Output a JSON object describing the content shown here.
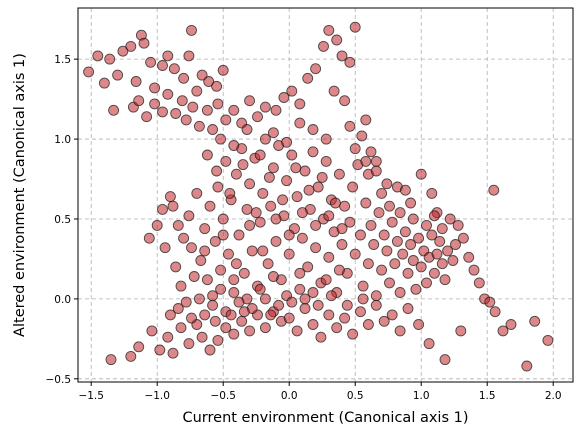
{
  "chart_data": {
    "type": "scatter",
    "xlabel": "Current environment (Canonical axis 1)",
    "ylabel": "Altered environment (Canonical axis 1)",
    "xlim": [
      -1.6,
      2.15
    ],
    "ylim": [
      -0.52,
      1.82
    ],
    "xticks": [
      -1.5,
      -1.0,
      -0.5,
      0.0,
      0.5,
      1.0,
      1.5,
      2.0
    ],
    "xtick_labels": [
      "−1.5",
      "−1.0",
      "−0.5",
      "0.0",
      "0.5",
      "1.0",
      "1.5",
      "2.0"
    ],
    "yticks": [
      -0.5,
      0.0,
      0.5,
      1.0,
      1.5
    ],
    "ytick_labels": [
      "−0.5",
      "0.0",
      "0.5",
      "1.0",
      "1.5"
    ],
    "grid": true,
    "marker_color": "#c0262a",
    "marker_edge_color": "#1a1a1a",
    "marker_alpha": 0.55,
    "points": [
      [
        -1.52,
        1.42
      ],
      [
        -1.45,
        1.52
      ],
      [
        -1.4,
        1.35
      ],
      [
        -1.36,
        1.5
      ],
      [
        -1.33,
        1.18
      ],
      [
        -1.3,
        1.4
      ],
      [
        -1.26,
        1.55
      ],
      [
        -1.2,
        1.58
      ],
      [
        -1.16,
        1.36
      ],
      [
        -1.12,
        1.65
      ],
      [
        -1.1,
        1.6
      ],
      [
        -1.05,
        1.48
      ],
      [
        -1.02,
        1.32
      ],
      [
        -0.96,
        1.46
      ],
      [
        -0.92,
        1.52
      ],
      [
        -0.87,
        1.44
      ],
      [
        -0.8,
        1.38
      ],
      [
        -0.76,
        1.52
      ],
      [
        -0.74,
        1.68
      ],
      [
        -0.7,
        1.3
      ],
      [
        -0.66,
        1.4
      ],
      [
        -0.61,
        1.36
      ],
      [
        -0.55,
        1.33
      ],
      [
        -0.5,
        1.43
      ],
      [
        -1.18,
        1.2
      ],
      [
        -1.14,
        1.24
      ],
      [
        -1.08,
        1.14
      ],
      [
        -1.02,
        1.22
      ],
      [
        -0.96,
        1.17
      ],
      [
        -0.92,
        1.28
      ],
      [
        -0.86,
        1.16
      ],
      [
        -0.81,
        1.24
      ],
      [
        -0.78,
        1.12
      ],
      [
        -0.73,
        1.2
      ],
      [
        -0.68,
        1.08
      ],
      [
        -0.62,
        1.18
      ],
      [
        -0.58,
        1.06
      ],
      [
        -0.54,
        1.22
      ],
      [
        -0.48,
        1.12
      ],
      [
        -0.42,
        1.18
      ],
      [
        -0.36,
        1.1
      ],
      [
        -0.3,
        1.24
      ],
      [
        -0.24,
        1.14
      ],
      [
        -0.18,
        1.2
      ],
      [
        -0.1,
        1.18
      ],
      [
        -0.04,
        1.26
      ],
      [
        0.02,
        1.3
      ],
      [
        0.08,
        1.22
      ],
      [
        0.14,
        1.38
      ],
      [
        0.2,
        1.44
      ],
      [
        0.26,
        1.58
      ],
      [
        0.3,
        1.68
      ],
      [
        0.36,
        1.62
      ],
      [
        0.4,
        1.52
      ],
      [
        0.46,
        1.48
      ],
      [
        0.5,
        1.7
      ],
      [
        0.34,
        1.3
      ],
      [
        0.42,
        1.24
      ],
      [
        0.46,
        1.08
      ],
      [
        0.55,
        1.02
      ],
      [
        0.62,
        0.92
      ],
      [
        0.58,
        1.12
      ],
      [
        0.66,
        0.86
      ],
      [
        0.74,
        0.72
      ],
      [
        0.82,
        0.7
      ],
      [
        0.88,
        0.68
      ],
      [
        0.92,
        0.6
      ],
      [
        1.0,
        0.78
      ],
      [
        1.08,
        0.66
      ],
      [
        1.12,
        0.54
      ],
      [
        1.16,
        0.44
      ],
      [
        1.22,
        0.5
      ],
      [
        1.28,
        0.46
      ],
      [
        1.32,
        0.38
      ],
      [
        1.36,
        0.26
      ],
      [
        1.4,
        0.18
      ],
      [
        1.44,
        0.1
      ],
      [
        1.48,
        0.0
      ],
      [
        1.52,
        -0.02
      ],
      [
        1.56,
        -0.08
      ],
      [
        1.62,
        -0.2
      ],
      [
        1.68,
        -0.16
      ],
      [
        1.8,
        -0.42
      ],
      [
        1.86,
        -0.14
      ],
      [
        1.96,
        -0.26
      ],
      [
        1.55,
        0.68
      ],
      [
        1.3,
        -0.2
      ],
      [
        1.18,
        -0.38
      ],
      [
        1.06,
        -0.28
      ],
      [
        0.98,
        -0.16
      ],
      [
        -1.35,
        -0.38
      ],
      [
        -1.2,
        -0.36
      ],
      [
        -1.14,
        -0.3
      ],
      [
        -1.04,
        -0.2
      ],
      [
        -0.98,
        -0.32
      ],
      [
        -0.92,
        -0.24
      ],
      [
        -0.88,
        -0.34
      ],
      [
        -0.82,
        -0.18
      ],
      [
        -0.76,
        -0.28
      ],
      [
        -0.7,
        -0.16
      ],
      [
        -0.66,
        -0.24
      ],
      [
        -0.6,
        -0.32
      ],
      [
        -0.54,
        -0.26
      ],
      [
        -0.48,
        -0.18
      ],
      [
        -0.42,
        -0.22
      ],
      [
        -0.36,
        -0.14
      ],
      [
        -0.3,
        -0.2
      ],
      [
        -0.24,
        -0.1
      ],
      [
        -0.18,
        -0.18
      ],
      [
        -0.12,
        -0.08
      ],
      [
        -0.06,
        -0.14
      ],
      [
        0.0,
        -0.12
      ],
      [
        0.06,
        -0.2
      ],
      [
        0.12,
        -0.06
      ],
      [
        0.18,
        -0.16
      ],
      [
        0.24,
        -0.24
      ],
      [
        0.3,
        -0.1
      ],
      [
        0.36,
        -0.18
      ],
      [
        0.42,
        -0.12
      ],
      [
        0.48,
        -0.22
      ],
      [
        0.54,
        -0.08
      ],
      [
        0.6,
        -0.16
      ],
      [
        0.66,
        -0.04
      ],
      [
        0.72,
        -0.14
      ],
      [
        0.78,
        -0.1
      ],
      [
        0.84,
        -0.2
      ],
      [
        0.9,
        -0.06
      ],
      [
        -0.96,
        0.56
      ],
      [
        -0.9,
        0.64
      ],
      [
        -0.84,
        0.46
      ],
      [
        -0.8,
        0.38
      ],
      [
        -0.76,
        0.52
      ],
      [
        -0.74,
        0.32
      ],
      [
        -0.7,
        0.66
      ],
      [
        -0.67,
        0.24
      ],
      [
        -0.64,
        0.44
      ],
      [
        -0.62,
        0.12
      ],
      [
        -0.6,
        0.58
      ],
      [
        -0.58,
        0.02
      ],
      [
        -0.56,
        0.36
      ],
      [
        -0.54,
        0.7
      ],
      [
        -0.52,
        0.18
      ],
      [
        -0.5,
        0.5
      ],
      [
        -0.48,
        0.86
      ],
      [
        -0.46,
        0.28
      ],
      [
        -0.44,
        0.62
      ],
      [
        -0.42,
        0.04
      ],
      [
        -0.4,
        0.78
      ],
      [
        -0.38,
        0.4
      ],
      [
        -0.36,
        0.94
      ],
      [
        -0.34,
        0.16
      ],
      [
        -0.32,
        0.56
      ],
      [
        -0.3,
        0.72
      ],
      [
        -0.28,
        0.3
      ],
      [
        -0.26,
        0.88
      ],
      [
        -0.24,
        0.08
      ],
      [
        -0.22,
        0.48
      ],
      [
        -0.2,
        0.66
      ],
      [
        -0.18,
        1.0
      ],
      [
        -0.16,
        0.22
      ],
      [
        -0.14,
        0.58
      ],
      [
        -0.12,
        0.82
      ],
      [
        -0.1,
        0.36
      ],
      [
        -0.08,
        0.96
      ],
      [
        -0.06,
        0.12
      ],
      [
        -0.04,
        0.52
      ],
      [
        -0.02,
        0.74
      ],
      [
        0.0,
        0.28
      ],
      [
        0.02,
        0.9
      ],
      [
        0.04,
        0.44
      ],
      [
        0.06,
        0.64
      ],
      [
        0.08,
        0.06
      ],
      [
        0.1,
        0.38
      ],
      [
        0.12,
        0.8
      ],
      [
        0.14,
        0.2
      ],
      [
        0.16,
        0.56
      ],
      [
        0.18,
        0.92
      ],
      [
        0.2,
        0.32
      ],
      [
        0.22,
        0.7
      ],
      [
        0.24,
        0.1
      ],
      [
        0.26,
        0.5
      ],
      [
        0.28,
        0.86
      ],
      [
        0.3,
        0.26
      ],
      [
        0.32,
        0.62
      ],
      [
        0.34,
        0.42
      ],
      [
        0.36,
        0.04
      ],
      [
        0.38,
        0.78
      ],
      [
        0.4,
        0.34
      ],
      [
        0.42,
        0.58
      ],
      [
        0.44,
        0.16
      ],
      [
        0.46,
        0.48
      ],
      [
        0.48,
        0.7
      ],
      [
        0.5,
        0.28
      ],
      [
        0.52,
        0.84
      ],
      [
        0.54,
        0.4
      ],
      [
        0.56,
        0.08
      ],
      [
        0.58,
        0.6
      ],
      [
        0.6,
        0.22
      ],
      [
        0.62,
        0.46
      ],
      [
        0.64,
        0.34
      ],
      [
        0.66,
        0.02
      ],
      [
        0.68,
        0.54
      ],
      [
        0.7,
        0.18
      ],
      [
        0.72,
        0.4
      ],
      [
        0.74,
        0.3
      ],
      [
        0.76,
        0.1
      ],
      [
        0.78,
        0.48
      ],
      [
        0.8,
        0.22
      ],
      [
        0.82,
        0.36
      ],
      [
        0.84,
        0.04
      ],
      [
        0.86,
        0.28
      ],
      [
        0.88,
        0.42
      ],
      [
        0.9,
        0.16
      ],
      [
        0.92,
        0.34
      ],
      [
        0.94,
        0.24
      ],
      [
        0.96,
        0.06
      ],
      [
        0.98,
        0.38
      ],
      [
        1.0,
        0.2
      ],
      [
        1.02,
        0.3
      ],
      [
        1.04,
        0.1
      ],
      [
        1.06,
        0.26
      ],
      [
        1.08,
        0.4
      ],
      [
        1.1,
        0.16
      ],
      [
        1.12,
        0.28
      ],
      [
        1.14,
        0.36
      ],
      [
        1.16,
        0.22
      ],
      [
        1.18,
        0.12
      ],
      [
        1.2,
        0.3
      ],
      [
        1.24,
        0.24
      ],
      [
        1.26,
        0.34
      ],
      [
        -0.55,
        0.8
      ],
      [
        -0.45,
        0.66
      ],
      [
        -0.35,
        0.84
      ],
      [
        -0.25,
        0.54
      ],
      [
        -0.15,
        0.76
      ],
      [
        -0.05,
        0.62
      ],
      [
        0.05,
        0.82
      ],
      [
        0.15,
        0.68
      ],
      [
        0.25,
        0.76
      ],
      [
        0.35,
        0.6
      ],
      [
        -0.62,
        0.9
      ],
      [
        -0.52,
        1.0
      ],
      [
        -0.42,
        0.96
      ],
      [
        -0.32,
        1.06
      ],
      [
        -0.22,
        0.9
      ],
      [
        -0.12,
        1.04
      ],
      [
        -0.02,
        0.98
      ],
      [
        0.08,
        1.1
      ],
      [
        0.18,
        1.06
      ],
      [
        0.28,
        1.0
      ],
      [
        -0.5,
        0.4
      ],
      [
        -0.4,
        0.22
      ],
      [
        -0.3,
        0.46
      ],
      [
        -0.2,
        0.3
      ],
      [
        -0.1,
        0.5
      ],
      [
        0.0,
        0.4
      ],
      [
        0.1,
        0.54
      ],
      [
        0.2,
        0.46
      ],
      [
        0.3,
        0.52
      ],
      [
        0.4,
        0.44
      ],
      [
        -0.52,
        0.06
      ],
      [
        -0.42,
        0.12
      ],
      [
        -0.32,
        0.0
      ],
      [
        -0.22,
        0.06
      ],
      [
        -0.12,
        0.14
      ],
      [
        -0.02,
        0.02
      ],
      [
        0.08,
        0.16
      ],
      [
        0.18,
        0.04
      ],
      [
        0.28,
        0.12
      ],
      [
        0.38,
        0.18
      ],
      [
        -0.58,
        -0.04
      ],
      [
        -0.48,
        -0.08
      ],
      [
        -0.38,
        -0.02
      ],
      [
        -0.28,
        -0.06
      ],
      [
        -0.18,
        0.0
      ],
      [
        -0.08,
        -0.04
      ],
      [
        0.02,
        -0.02
      ],
      [
        0.12,
        0.0
      ],
      [
        0.22,
        -0.04
      ],
      [
        0.32,
        0.02
      ],
      [
        -0.86,
        0.2
      ],
      [
        -0.82,
        0.08
      ],
      [
        -0.78,
        -0.02
      ],
      [
        -0.72,
        0.14
      ],
      [
        -0.68,
        0.0
      ],
      [
        -0.64,
        0.3
      ],
      [
        -1.0,
        0.46
      ],
      [
        -1.06,
        0.38
      ],
      [
        -0.94,
        0.32
      ],
      [
        -0.88,
        0.58
      ],
      [
        0.6,
        0.78
      ],
      [
        0.7,
        0.66
      ],
      [
        0.76,
        0.58
      ],
      [
        0.84,
        0.54
      ],
      [
        0.94,
        0.5
      ],
      [
        1.04,
        0.46
      ],
      [
        1.1,
        0.52
      ],
      [
        0.5,
        0.94
      ],
      [
        0.58,
        0.86
      ],
      [
        0.66,
        0.8
      ],
      [
        -0.9,
        -0.1
      ],
      [
        -0.84,
        -0.06
      ],
      [
        -0.74,
        -0.12
      ],
      [
        -0.64,
        -0.1
      ],
      [
        -0.56,
        -0.14
      ],
      [
        -0.44,
        -0.1
      ],
      [
        -0.34,
        -0.08
      ],
      [
        -0.14,
        -0.1
      ],
      [
        0.44,
        -0.04
      ],
      [
        0.56,
        0.0
      ]
    ]
  }
}
